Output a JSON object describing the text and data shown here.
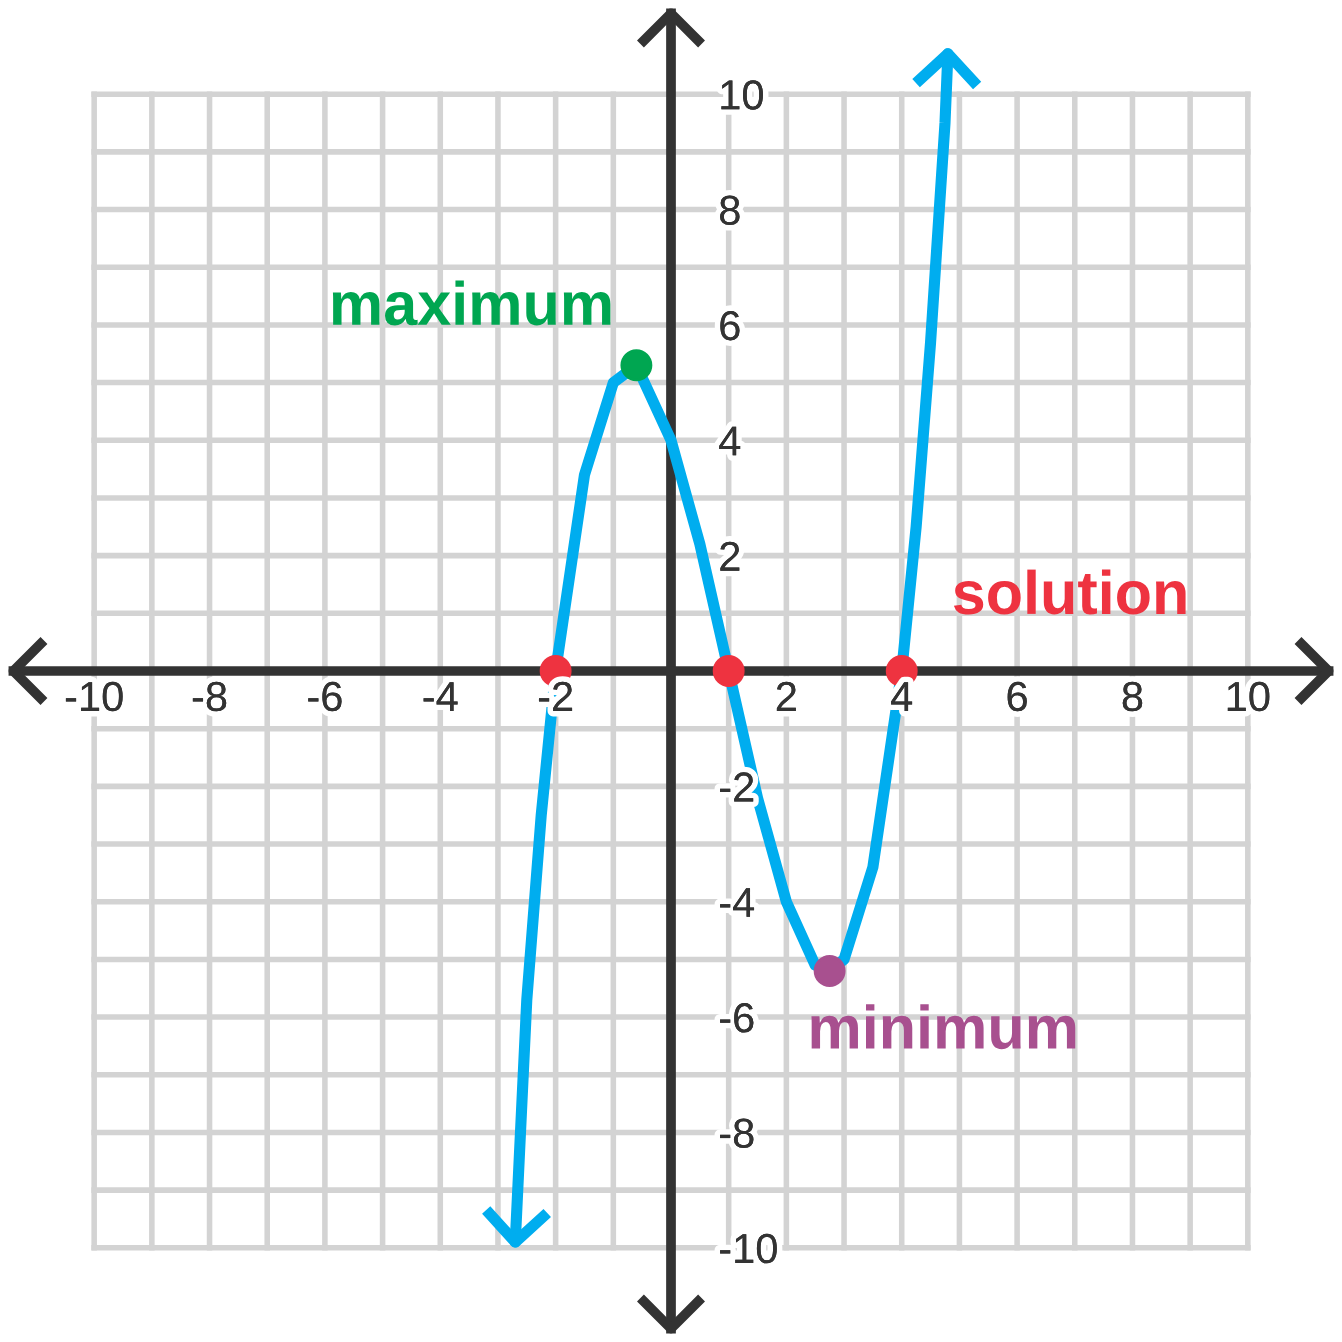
{
  "chart_data": {
    "type": "line",
    "xlim": [
      -11.4,
      11.4
    ],
    "ylim": [
      -11.4,
      11.4
    ],
    "xticks": [
      -10,
      {
        "value": -9,
        "label": null
      },
      -8,
      {
        "value": -7,
        "label": null
      },
      -6,
      {
        "value": -5,
        "label": null
      },
      -4,
      {
        "value": -3,
        "label": null
      },
      -2,
      {
        "value": -1,
        "label": null
      },
      {
        "value": 0,
        "label": null
      },
      {
        "value": 1,
        "label": null
      },
      2,
      {
        "value": 3,
        "label": null
      },
      4,
      {
        "value": 5,
        "label": null
      },
      6,
      {
        "value": 7,
        "label": null
      },
      8,
      {
        "value": 9,
        "label": null
      },
      10
    ],
    "yticks": [
      -10,
      {
        "value": -9,
        "label": null
      },
      -8,
      {
        "value": -7,
        "label": null
      },
      -6,
      {
        "value": -5,
        "label": null
      },
      -4,
      {
        "value": -3,
        "label": null
      },
      -2,
      {
        "value": -1,
        "label": null
      },
      {
        "value": 0,
        "label": null
      },
      {
        "value": 1,
        "label": null
      },
      2,
      {
        "value": 3,
        "label": null
      },
      4,
      {
        "value": 5,
        "label": null
      },
      6,
      {
        "value": 7,
        "label": null
      },
      8,
      {
        "value": 9,
        "label": null
      },
      10
    ],
    "grid": true,
    "series": [
      {
        "color": "#00adef",
        "x": [
          -2.7,
          -2.5,
          -2.25,
          -2,
          -1.5,
          -1,
          -0.6,
          0,
          0.5,
          1,
          1.5,
          2,
          2.5,
          2.75,
          3,
          3.5,
          4,
          4.25,
          4.5,
          4.75,
          4.8
        ],
        "values": [
          -9.9,
          -5.7,
          -2.5,
          0,
          3.4,
          5,
          5.3,
          4,
          2.2,
          0,
          -2.2,
          -4,
          -5.1,
          -5.2,
          -5,
          -3.4,
          0,
          2.5,
          5.7,
          9.5,
          10.7
        ]
      },
      {
        "type": "scatter",
        "color": "#00a651",
        "x": [
          -0.6
        ],
        "values": [
          5.3
        ]
      },
      {
        "type": "scatter",
        "color": "#ee3340",
        "x": [
          -2,
          1,
          4
        ],
        "values": [
          0,
          0,
          0
        ]
      },
      {
        "type": "scatter",
        "color": "#a8508f",
        "x": [
          2.75
        ],
        "values": [
          -5.2
        ]
      }
    ],
    "annotations": [
      {
        "text": "maximum",
        "x": -0.6,
        "y": 5.3
      },
      {
        "text": "solution",
        "x": 4,
        "y": 0
      },
      {
        "text": "minimum",
        "x": 2.75,
        "y": -5.2
      }
    ]
  }
}
